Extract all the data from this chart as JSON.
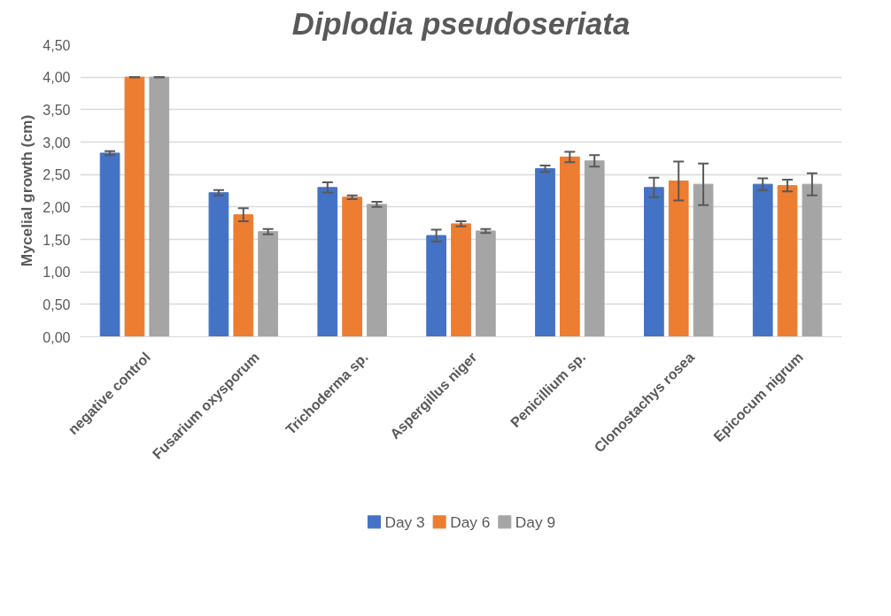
{
  "chart_data": {
    "type": "bar",
    "title": "Diplodia pseudoseriata",
    "ylabel": "Mycelial growth (cm)",
    "categories": [
      "negative control",
      "Fusarium oxysporum",
      "Trichoderma sp.",
      "Aspergillus niger",
      "Penicillium sp.",
      "Clonostachys rosea",
      "Epicocum nigrum"
    ],
    "series": [
      {
        "name": "Day 3",
        "color": "#4472c4",
        "values": [
          2.83,
          2.22,
          2.3,
          1.56,
          2.59,
          2.3,
          2.35
        ],
        "errors": [
          0.03,
          0.04,
          0.08,
          0.09,
          0.05,
          0.15,
          0.09
        ]
      },
      {
        "name": "Day 6",
        "color": "#ed7d31",
        "values": [
          4.0,
          1.88,
          2.15,
          1.74,
          2.77,
          2.4,
          2.33
        ],
        "errors": [
          0,
          0.1,
          0.03,
          0.04,
          0.08,
          0.3,
          0.09
        ]
      },
      {
        "name": "Day 9",
        "color": "#a5a5a5",
        "values": [
          4.0,
          1.62,
          2.04,
          1.63,
          2.71,
          2.35,
          2.35
        ],
        "errors": [
          0,
          0.04,
          0.04,
          0.03,
          0.09,
          0.32,
          0.17
        ]
      }
    ],
    "ylim": [
      0,
      4.5
    ],
    "yticks": [
      {
        "value": 0,
        "label": "0,00"
      },
      {
        "value": 0.5,
        "label": "0,50"
      },
      {
        "value": 1,
        "label": "1,00"
      },
      {
        "value": 1.5,
        "label": "1,50"
      },
      {
        "value": 2,
        "label": "2,00"
      },
      {
        "value": 2.5,
        "label": "2,50"
      },
      {
        "value": 3,
        "label": "3,00"
      },
      {
        "value": 3.5,
        "label": "3,50"
      },
      {
        "value": 4,
        "label": "4,00"
      },
      {
        "value": 4.5,
        "label": "4,50"
      }
    ],
    "grid": "y",
    "legend": "bottom"
  }
}
